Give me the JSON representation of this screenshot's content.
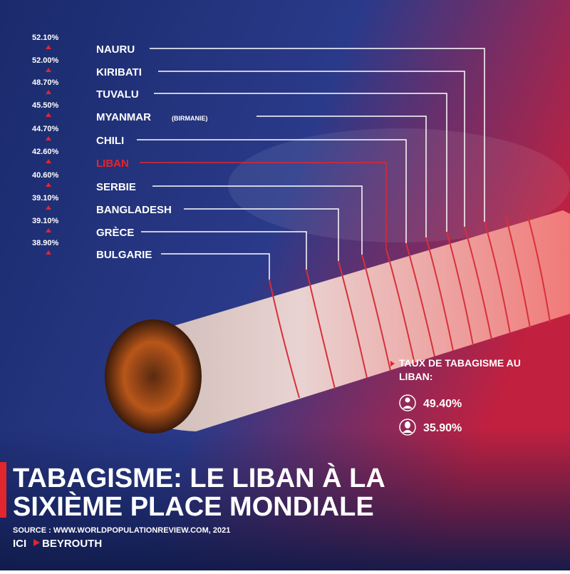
{
  "ranking": [
    {
      "percent": "52.10%",
      "country": "NAURU"
    },
    {
      "percent": "52.00%",
      "country": "KIRIBATI"
    },
    {
      "percent": "48.70%",
      "country": "TUVALU"
    },
    {
      "percent": "45.50%",
      "country": "MYANMAR",
      "note": "(BIRMANIE)"
    },
    {
      "percent": "44.70%",
      "country": "CHILI"
    },
    {
      "percent": "42.60%",
      "country": "LIBAN"
    },
    {
      "percent": "40.60%",
      "country": "SERBIE"
    },
    {
      "percent": "39.10%",
      "country": "BANGLADESH"
    },
    {
      "percent": "39.10%",
      "country": "GRÈCE"
    },
    {
      "percent": "38.90%",
      "country": "BULGARIE"
    }
  ],
  "lebanon": {
    "heading": "TAUX DE TABAGISME AU LIBAN:",
    "men": "49.40%",
    "women": "35.90%"
  },
  "title": {
    "line1": "TABAGISME: LE LIBAN À LA",
    "line2": "SIXIÈME PLACE MONDIALE"
  },
  "source": "SOURCE : WWW.WORLDPOPULATIONREVIEW.COM, 2021",
  "brand": {
    "left": "ICI",
    "right": "BEYROUTH"
  }
}
